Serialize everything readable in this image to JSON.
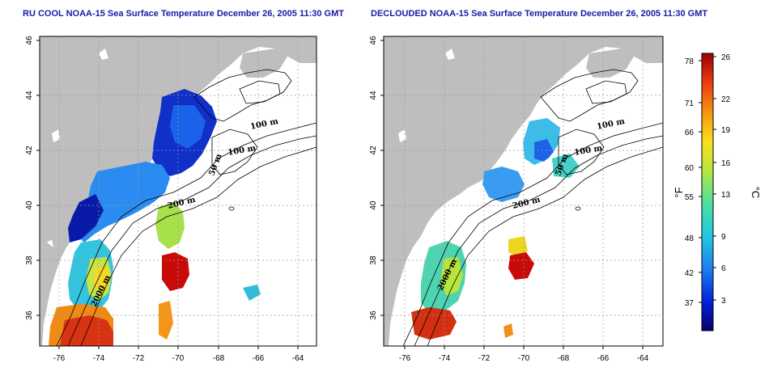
{
  "panels": [
    {
      "title": "RU COOL NOAA-15 Sea Surface Temperature December 26, 2005 11:30 GMT",
      "contour_labels": [
        "100 m",
        "100 m",
        "50 m",
        "200 m",
        "2000 m"
      ]
    },
    {
      "title": "DECLOUDED NOAA-15 Sea Surface Temperature December 26, 2005 11:30 GMT",
      "contour_labels": [
        "100 m",
        "100 m",
        "50 m",
        "200 m",
        "2000 m"
      ]
    }
  ],
  "axes": {
    "lon_ticks": [
      "-76",
      "-74",
      "-72",
      "-70",
      "-68",
      "-66",
      "-64"
    ],
    "lat_ticks": [
      "46",
      "44",
      "42",
      "40",
      "38",
      "36"
    ]
  },
  "colorbar": {
    "fahrenheit_ticks": [
      "78",
      "71",
      "66",
      "60",
      "55",
      "48",
      "42",
      "37"
    ],
    "celsius_ticks": [
      "26",
      "22",
      "19",
      "16",
      "13",
      "9",
      "6",
      "3"
    ],
    "left_label": "°F",
    "right_label": "°C",
    "colors": [
      "#08006a",
      "#0020d8",
      "#1e7cf0",
      "#22c8e0",
      "#4ee0a0",
      "#b8e63c",
      "#f8e020",
      "#f89a10",
      "#e83810",
      "#9c0000"
    ]
  }
}
